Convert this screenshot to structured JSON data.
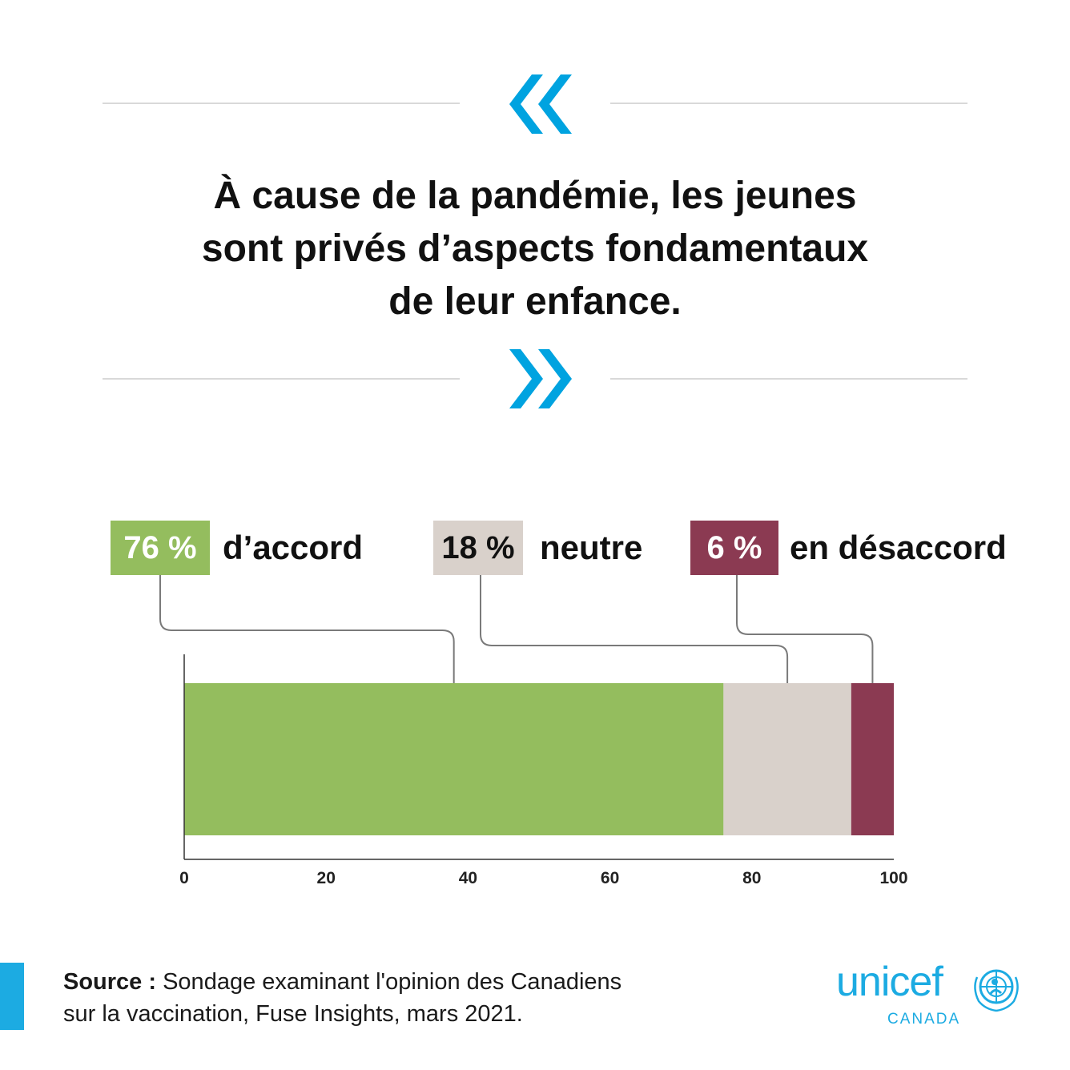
{
  "quote": {
    "lines": [
      "À cause de la pandémie, les jeunes",
      "sont privés d’aspects fondamentaux",
      "de leur enfance."
    ],
    "icon_open": "left-chevron-quote-icon",
    "icon_close": "right-chevron-quote-icon"
  },
  "colors": {
    "accent": "#00a3e0",
    "agree": "#94bd5e",
    "neutral": "#d9d1cb",
    "disagree": "#8b3a52",
    "brand": "#1cabe2"
  },
  "chart_data": {
    "type": "bar",
    "orientation": "horizontal-stacked",
    "series": [
      {
        "name": "d’accord",
        "value": 76,
        "value_label": "76 %"
      },
      {
        "name": "neutre",
        "value": 18,
        "value_label": "18 %"
      },
      {
        "name": "en désaccord",
        "value": 6,
        "value_label": "6 %"
      }
    ],
    "xlim": [
      0,
      100
    ],
    "xticks": [
      "0",
      "20",
      "40",
      "60",
      "80",
      "100"
    ],
    "grid": false,
    "legend": "top"
  },
  "footer": {
    "source_label": "Source :",
    "source_text": " Sondage examinant l'opinion des Canadiens",
    "source_text_2": "sur la vaccination, Fuse Insights, mars 2021."
  },
  "logo": {
    "word": "unicef",
    "sub": "CANADA",
    "icon": "unicef-emblem-icon"
  }
}
